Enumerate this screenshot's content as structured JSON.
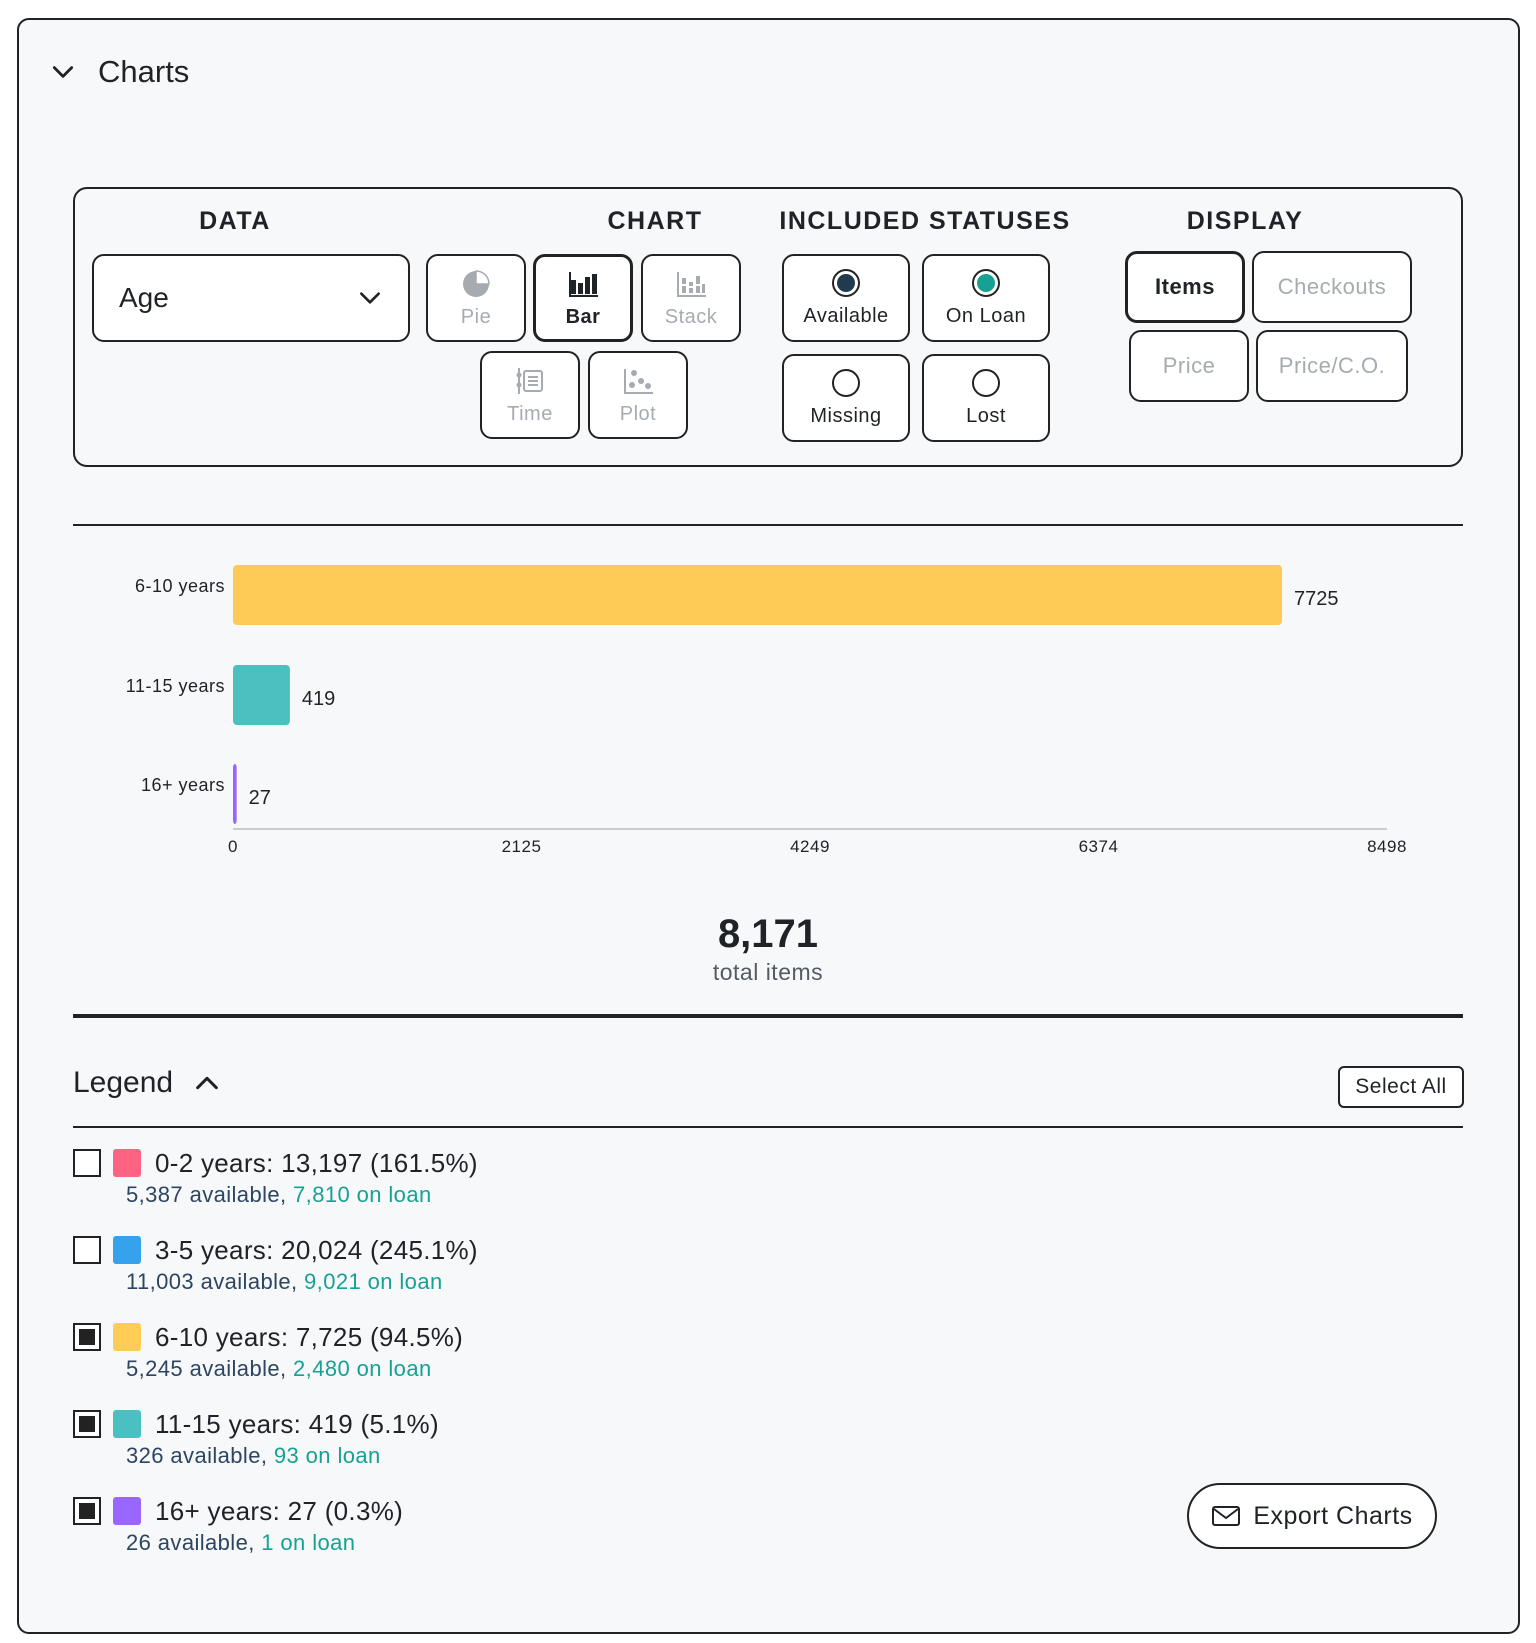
{
  "header": {
    "title": "Charts"
  },
  "options": {
    "data_title": "DATA",
    "data_value": "Age",
    "chart_title": "CHART",
    "chart_types": [
      {
        "label": "Pie",
        "icon": "pie-icon",
        "active": false
      },
      {
        "label": "Bar",
        "icon": "bar-icon",
        "active": true
      },
      {
        "label": "Stack",
        "icon": "stack-icon",
        "active": false
      },
      {
        "label": "Time",
        "icon": "time-icon",
        "active": false
      },
      {
        "label": "Plot",
        "icon": "plot-icon",
        "active": false
      }
    ],
    "statuses_title": "INCLUDED STATUSES",
    "statuses": [
      {
        "label": "Available",
        "selected": true,
        "color": "#1f3b4d"
      },
      {
        "label": "On Loan",
        "selected": true,
        "color": "#17a192"
      },
      {
        "label": "Missing",
        "selected": false
      },
      {
        "label": "Lost",
        "selected": false
      }
    ],
    "display_title": "DISPLAY",
    "display": [
      {
        "label": "Items",
        "active": true
      },
      {
        "label": "Checkouts",
        "active": false
      },
      {
        "label": "Price",
        "active": false
      },
      {
        "label": "Price/C.O.",
        "active": false
      }
    ]
  },
  "chart_data": {
    "type": "bar",
    "orientation": "horizontal",
    "categories": [
      "6-10 years",
      "11-15 years",
      "16+ years"
    ],
    "values": [
      7725,
      419,
      27
    ],
    "colors": [
      "#ffcb57",
      "#4bc0c0",
      "#9966ff"
    ],
    "xlim": [
      0,
      8498
    ],
    "xticks": [
      "0",
      "2125",
      "4249",
      "6374",
      "8498"
    ],
    "value_labels": [
      "7725",
      "419",
      "27"
    ]
  },
  "total": {
    "value": "8,171",
    "label": "total items"
  },
  "legend": {
    "title": "Legend",
    "select_all": "Select All",
    "items": [
      {
        "label": "0-2 years: 13,197 (161.5%)",
        "color": "#ff6384",
        "checked": false,
        "available": "5,387 available,",
        "on_loan": "7,810 on loan"
      },
      {
        "label": "3-5 years: 20,024 (245.1%)",
        "color": "#36a2eb",
        "checked": false,
        "available": "11,003 available,",
        "on_loan": "9,021 on loan"
      },
      {
        "label": "6-10 years: 7,725 (94.5%)",
        "color": "#ffcd56",
        "checked": true,
        "available": "5,245 available,",
        "on_loan": "2,480 on loan"
      },
      {
        "label": "11-15 years: 419 (5.1%)",
        "color": "#4bc0c0",
        "checked": true,
        "available": "326 available,",
        "on_loan": "93 on loan"
      },
      {
        "label": "16+ years: 27 (0.3%)",
        "color": "#9966ff",
        "checked": true,
        "available": "26 available,",
        "on_loan": "1 on loan"
      }
    ]
  },
  "export": {
    "label": "Export Charts",
    "icon": "mail-icon"
  }
}
